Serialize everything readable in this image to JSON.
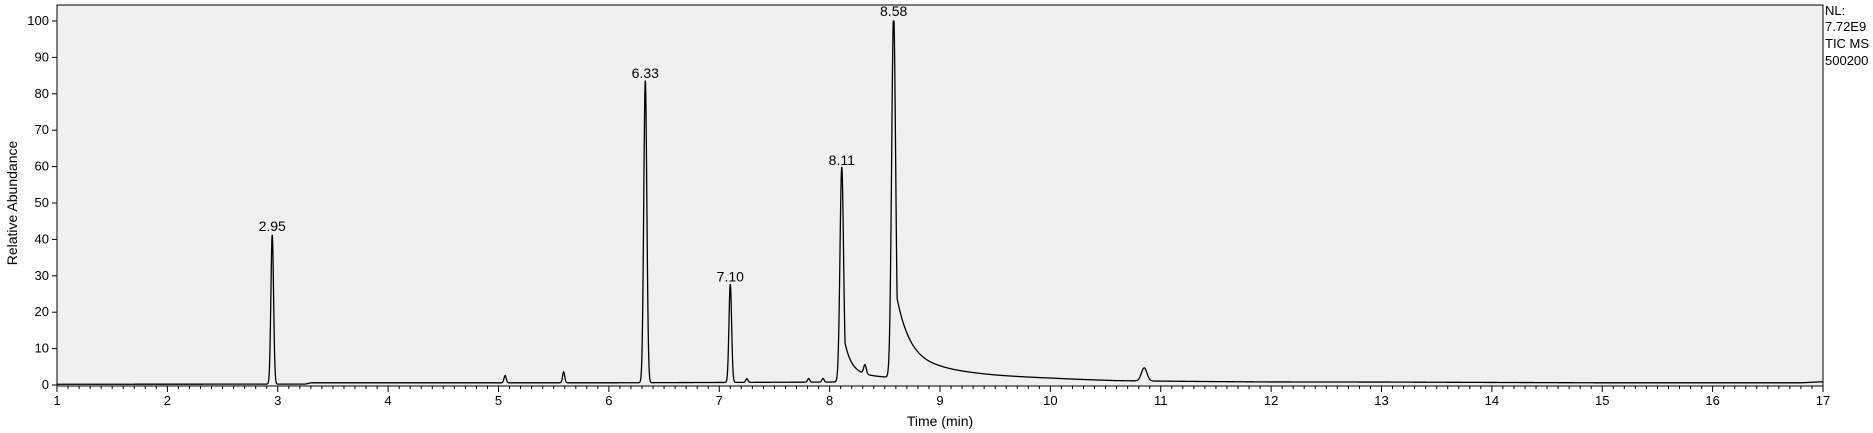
{
  "chart_data": {
    "type": "line",
    "title": "",
    "xlabel": "Time (min)",
    "ylabel": "Relative Abundance",
    "xlim": [
      1,
      17
    ],
    "ylim": [
      0,
      100
    ],
    "x_ticks": [
      1,
      2,
      3,
      4,
      5,
      6,
      7,
      8,
      9,
      10,
      11,
      12,
      13,
      14,
      15,
      16,
      17
    ],
    "y_ticks": [
      0,
      10,
      20,
      30,
      40,
      50,
      60,
      70,
      80,
      90,
      100
    ],
    "grid": false,
    "line_color": "#000000",
    "plot_background": "#f0f0f0",
    "baseline": {
      "x": [
        1.0,
        3.25,
        3.3,
        5.0,
        6.0,
        7.0,
        8.0,
        9.0,
        9.5,
        10.0,
        10.6,
        11.0,
        12.0,
        13.0,
        14.0,
        15.0,
        16.0,
        16.8,
        17.0
      ],
      "y": [
        0.2,
        0.25,
        0.6,
        0.6,
        0.6,
        0.7,
        0.8,
        1.6,
        1.3,
        1.2,
        0.9,
        0.9,
        0.8,
        0.8,
        0.7,
        0.6,
        0.6,
        0.6,
        0.9
      ]
    },
    "peaks": [
      {
        "rt": 2.95,
        "height": 41,
        "width": 0.012,
        "tail": 0,
        "label": "2.95"
      },
      {
        "rt": 6.33,
        "height": 83,
        "width": 0.014,
        "tail": 0,
        "label": "6.33"
      },
      {
        "rt": 7.1,
        "height": 27,
        "width": 0.012,
        "tail": 0,
        "label": "7.10"
      },
      {
        "rt": 8.11,
        "height": 59,
        "width": 0.016,
        "tail": 0.06,
        "label": "8.11"
      },
      {
        "rt": 8.58,
        "height": 100,
        "width": 0.018,
        "tail": 0.12,
        "label": "8.58"
      },
      {
        "rt": 5.06,
        "height": 2,
        "width": 0.01,
        "tail": 0,
        "label": ""
      },
      {
        "rt": 5.59,
        "height": 3,
        "width": 0.01,
        "tail": 0,
        "label": ""
      },
      {
        "rt": 7.25,
        "height": 1,
        "width": 0.01,
        "tail": 0,
        "label": ""
      },
      {
        "rt": 7.81,
        "height": 1,
        "width": 0.01,
        "tail": 0,
        "label": ""
      },
      {
        "rt": 7.94,
        "height": 1,
        "width": 0.01,
        "tail": 0,
        "label": ""
      },
      {
        "rt": 8.32,
        "height": 2.5,
        "width": 0.012,
        "tail": 0,
        "label": ""
      },
      {
        "rt": 10.85,
        "height": 3.6,
        "width": 0.025,
        "tail": 0,
        "label": ""
      }
    ],
    "annotations": [
      "NL:",
      "7.72E9",
      "TIC  MS",
      "500200"
    ]
  }
}
